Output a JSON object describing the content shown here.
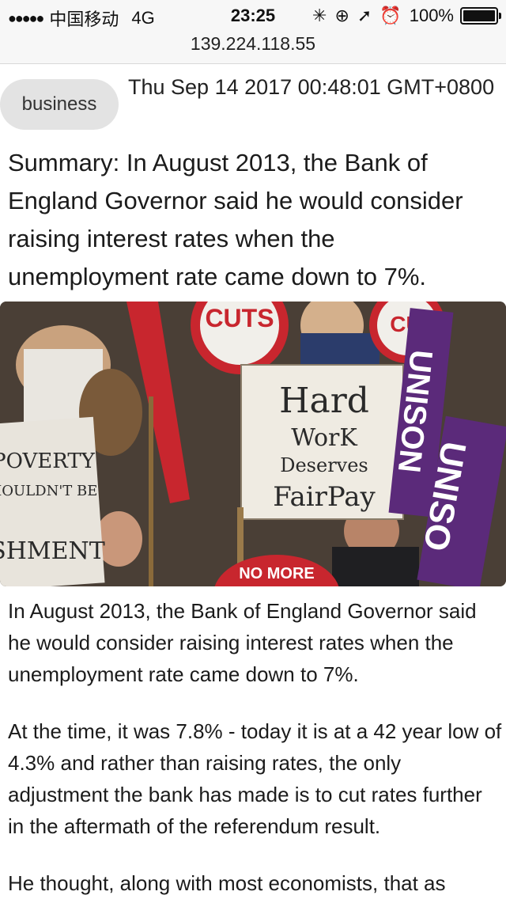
{
  "status_bar": {
    "signal": "●●●●●",
    "carrier": "中国移动",
    "network": "4G",
    "time": "23:25",
    "battery": "100%",
    "icons": [
      "activity-icon",
      "lock-rotation-icon",
      "location-icon",
      "alarm-icon"
    ]
  },
  "url_bar": {
    "address": "139.224.118.55"
  },
  "article": {
    "category": "business",
    "date": "Thu Sep 14 2017 00:48:01 GMT+0800",
    "summary": "Summary: In August 2013, the Bank of England Governor said he would consider raising interest rates when the unemployment rate came down to 7%.",
    "image": {
      "sign_texts": [
        "CUTS",
        "CUT",
        "Hard",
        "WorK",
        "Deserves",
        "FairPay",
        "POVERTY",
        "HOULDN'T BE",
        "SHMENT",
        "UNISON",
        "UNISO",
        "NO MORE"
      ]
    },
    "paragraphs": [
      "In August 2013, the Bank of England Governor said he would consider raising interest rates when the unemployment rate came down to 7%.",
      "At the time, it was 7.8% - today it is at a 42 year low of 4.3% and rather than raising rates, the only adjustment the bank has made is to cut rates further in the aftermath of the referendum result.",
      "He thought, along with most economists, that as"
    ]
  },
  "colors": {
    "status_bg": "#f7f7f7",
    "tag_bg": "#e3e3e3",
    "text": "#1b1b1b",
    "sign_red": "#c8262e",
    "unison_purple": "#5b2a7a"
  }
}
